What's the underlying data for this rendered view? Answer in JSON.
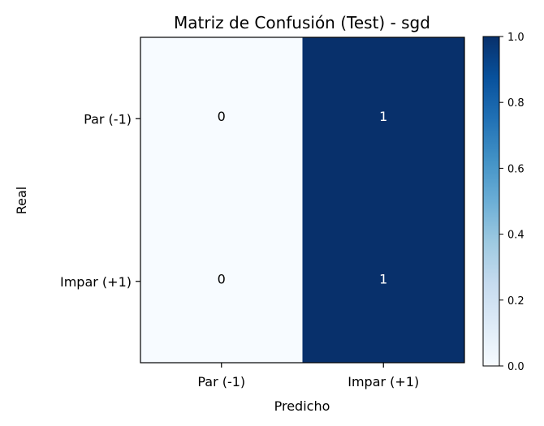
{
  "chart_data": {
    "type": "heatmap",
    "title": "Matriz de Confusión (Test) - sgd",
    "xlabel": "Predicho",
    "ylabel": "Real",
    "x_categories": [
      "Par (-1)",
      "Impar (+1)"
    ],
    "y_categories": [
      "Par (-1)",
      "Impar (+1)"
    ],
    "values": [
      [
        0,
        1
      ],
      [
        0,
        1
      ]
    ],
    "colormap": "Blues",
    "color_low": "#f7fbff",
    "color_high": "#08306b",
    "colorbar": {
      "min": 0.0,
      "max": 1.0,
      "ticks": [
        0.0,
        0.2,
        0.4,
        0.6,
        0.8,
        1.0
      ],
      "tick_labels": [
        "0.0",
        "0.2",
        "0.4",
        "0.6",
        "0.8",
        "1.0"
      ]
    },
    "grid": false
  }
}
